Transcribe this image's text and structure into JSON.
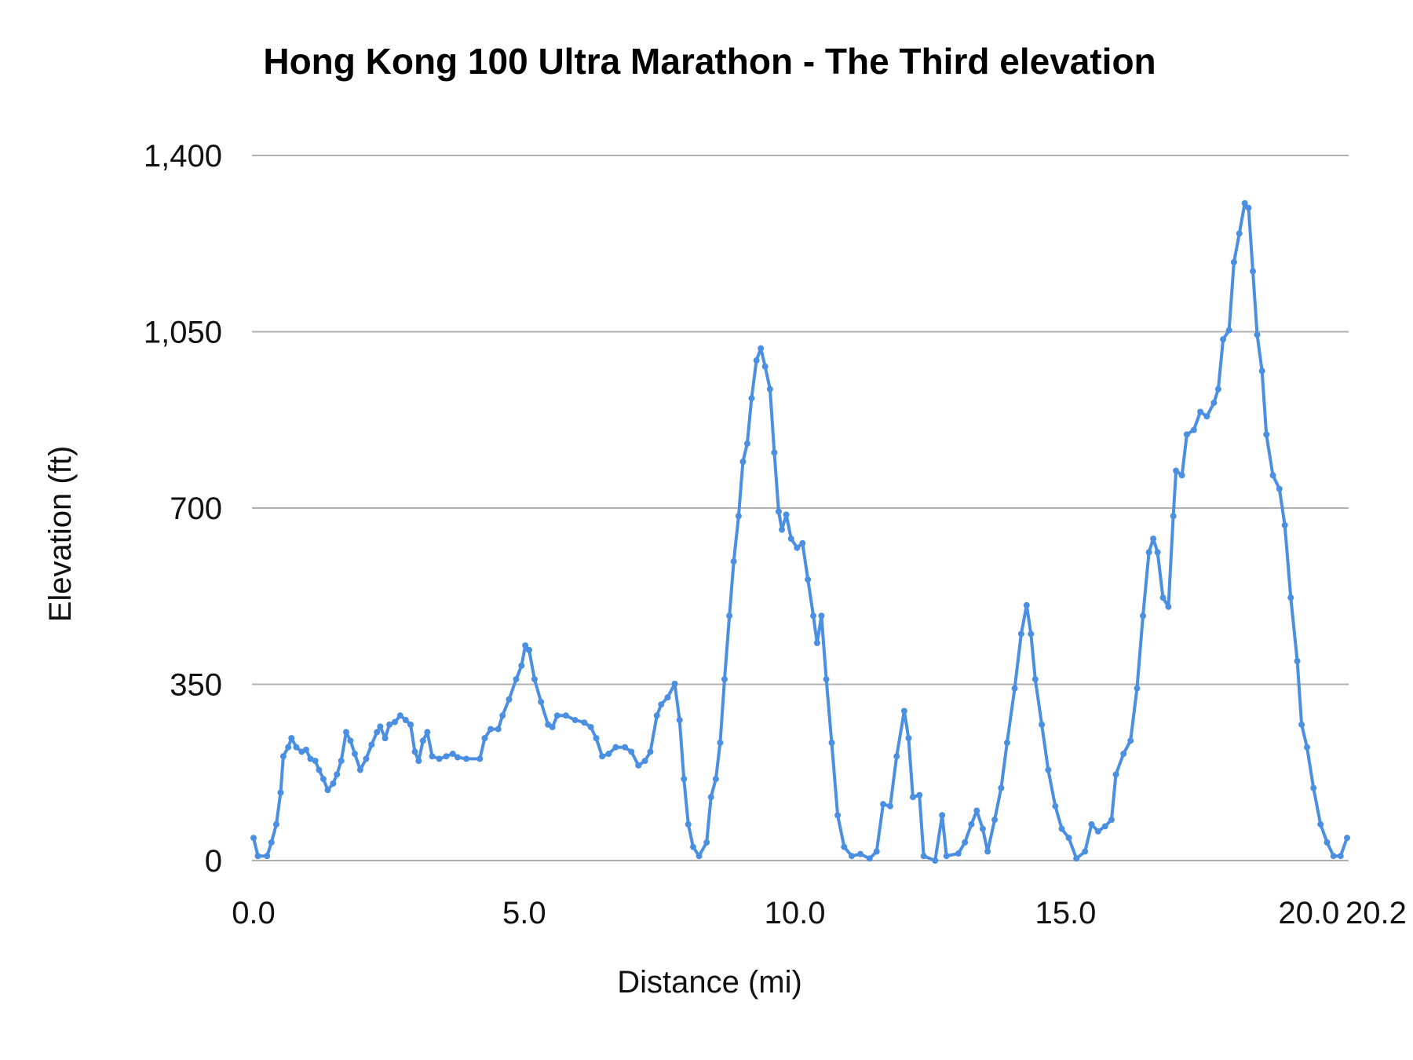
{
  "chart_data": {
    "type": "line",
    "title": "Hong Kong 100 Ultra Marathon - The Third elevation",
    "xlabel": "Distance (mi)",
    "ylabel": "Elevation (ft)",
    "xlim": [
      0,
      20.2
    ],
    "ylim": [
      0,
      1400
    ],
    "x_ticks": [
      0,
      5,
      10,
      15,
      20,
      20.2
    ],
    "x_tick_labels": [
      "0.0",
      "5.0",
      "10.0",
      "15.0",
      "20.0",
      "20.2"
    ],
    "y_ticks": [
      0,
      350,
      700,
      1050,
      1400
    ],
    "y_tick_labels": [
      "0",
      "350",
      "700",
      "1,050",
      "1,400"
    ],
    "grid": true,
    "legend": "none",
    "markers": true,
    "color": "#4a8fe2",
    "series": [
      {
        "x": [
          0.0,
          0.08,
          0.25,
          0.33,
          0.42,
          0.5,
          0.55,
          0.64,
          0.7,
          0.79,
          0.89,
          0.97,
          1.05,
          1.14,
          1.21,
          1.29,
          1.37,
          1.47,
          1.54,
          1.62,
          1.71,
          1.79,
          1.87,
          1.97,
          2.08,
          2.18,
          2.28,
          2.34,
          2.43,
          2.51,
          2.61,
          2.71,
          2.81,
          2.9,
          2.98,
          3.05,
          3.13,
          3.21,
          3.3,
          3.43,
          3.56,
          3.68,
          3.77,
          3.93,
          4.18,
          4.27,
          4.38,
          4.52,
          4.6,
          4.72,
          4.85,
          4.95,
          5.02,
          5.09,
          5.19,
          5.31,
          5.44,
          5.52,
          5.61,
          5.77,
          5.94,
          6.11,
          6.23,
          6.33,
          6.44,
          6.56,
          6.69,
          6.86,
          6.98,
          7.11,
          7.23,
          7.33,
          7.45,
          7.53,
          7.65,
          7.78,
          7.87,
          7.95,
          8.03,
          8.12,
          8.23,
          8.37,
          8.45,
          8.54,
          8.62,
          8.7,
          8.79,
          8.87,
          8.96,
          9.04,
          9.12,
          9.2,
          9.29,
          9.37,
          9.45,
          9.54,
          9.62,
          9.7,
          9.76,
          9.84,
          9.93,
          10.04,
          10.14,
          10.24,
          10.34,
          10.41,
          10.49,
          10.58,
          10.68,
          10.79,
          10.91,
          11.05,
          11.21,
          11.38,
          11.51,
          11.63,
          11.76,
          11.88,
          12.02,
          12.1,
          12.18,
          12.3,
          12.38,
          12.59,
          12.72,
          12.8,
          13.02,
          13.14,
          13.26,
          13.36,
          13.47,
          13.56,
          13.69,
          13.81,
          13.92,
          14.06,
          14.18,
          14.28,
          14.36,
          14.44,
          14.56,
          14.68,
          14.81,
          14.93,
          15.06,
          15.2,
          15.36,
          15.48,
          15.6,
          15.73,
          15.85,
          15.93,
          16.07,
          16.2,
          16.32,
          16.43,
          16.54,
          16.62,
          16.7,
          16.8,
          16.9,
          16.99,
          17.04,
          17.15,
          17.24,
          17.37,
          17.49,
          17.61,
          17.74,
          17.82,
          17.91,
          18.02,
          18.11,
          18.21,
          18.31,
          18.38,
          18.46,
          18.54,
          18.63,
          18.71,
          18.83,
          18.95,
          19.05,
          19.16,
          19.28,
          19.36,
          19.46,
          19.58,
          19.71,
          19.83,
          19.95,
          20.08,
          20.2
        ],
        "y": [
          45,
          9,
          9,
          36,
          72,
          135,
          207,
          225,
          243,
          225,
          216,
          220,
          202,
          198,
          180,
          162,
          140,
          153,
          171,
          198,
          255,
          238,
          212,
          180,
          202,
          230,
          255,
          266,
          243,
          270,
          275,
          288,
          279,
          270,
          216,
          198,
          238,
          255,
          207,
          202,
          207,
          212,
          205,
          202,
          202,
          243,
          261,
          261,
          288,
          320,
          360,
          387,
          427,
          418,
          360,
          315,
          270,
          265,
          288,
          288,
          279,
          274,
          265,
          243,
          207,
          212,
          225,
          225,
          216,
          189,
          198,
          216,
          288,
          310,
          324,
          351,
          279,
          162,
          72,
          27,
          9,
          36,
          126,
          162,
          234,
          360,
          486,
          594,
          684,
          792,
          828,
          918,
          993,
          1017,
          981,
          936,
          810,
          693,
          657,
          687,
          639,
          621,
          630,
          558,
          486,
          432,
          486,
          360,
          234,
          90,
          27,
          9,
          13,
          4,
          18,
          112,
          108,
          207,
          297,
          243,
          126,
          130,
          9,
          0,
          90,
          9,
          14,
          36,
          72,
          99,
          63,
          18,
          81,
          144,
          234,
          342,
          450,
          507,
          450,
          360,
          270,
          180,
          108,
          63,
          45,
          4,
          18,
          72,
          58,
          68,
          81,
          171,
          212,
          238,
          342,
          486,
          612,
          639,
          612,
          522,
          504,
          684,
          774,
          765,
          846,
          855,
          891,
          882,
          909,
          936,
          1035,
          1053,
          1188,
          1245,
          1305,
          1296,
          1170,
          1044,
          972,
          846,
          765,
          738,
          666,
          522,
          396,
          270,
          225,
          144,
          72,
          36,
          9,
          9,
          45
        ]
      }
    ]
  }
}
